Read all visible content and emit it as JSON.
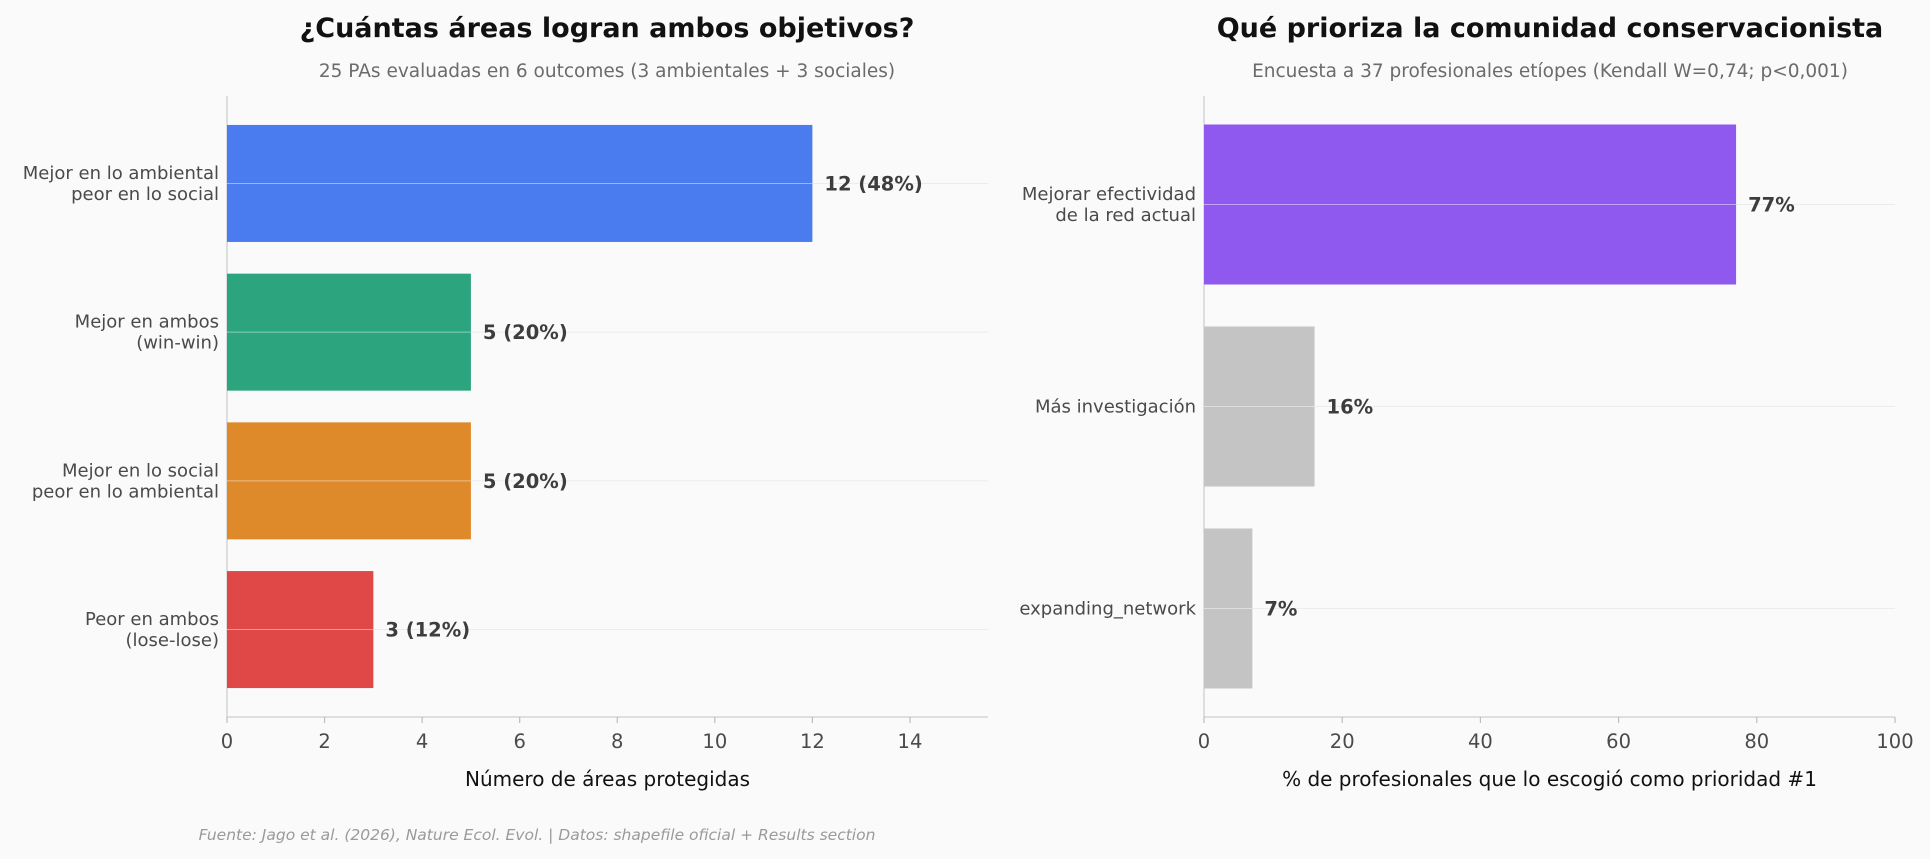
{
  "chart_data": [
    {
      "type": "bar",
      "orientation": "horizontal",
      "title": "¿Cuántas áreas logran ambos objetivos?",
      "subtitle": "25 PAs evaluadas en 6 outcomes (3 ambientales + 3 sociales)",
      "xlabel": "Número de áreas protegidas",
      "ylabel": "",
      "xlim": [
        0,
        15.6
      ],
      "xticks": [
        "0",
        "2",
        "4",
        "6",
        "8",
        "10",
        "12",
        "14"
      ],
      "grid": "horizontal, light",
      "categories": [
        [
          "Mejor en lo ambiental",
          "peor en lo social"
        ],
        [
          "Mejor en ambos",
          "(win-win)"
        ],
        [
          "Mejor en lo social",
          "peor en lo ambiental"
        ],
        [
          "Peor en ambos",
          "(lose-lose)"
        ]
      ],
      "values": [
        12,
        5,
        5,
        3
      ],
      "data_labels": [
        "12 (48%)",
        "5 (20%)",
        "5 (20%)",
        "3 (12%)"
      ],
      "colors": [
        "#4a7bef",
        "#2ca57f",
        "#de892a",
        "#e04848"
      ]
    },
    {
      "type": "bar",
      "orientation": "horizontal",
      "title": "Qué prioriza la comunidad conservacionista",
      "subtitle": "Encuesta a 37 profesionales etíopes (Kendall W=0,74; p<0,001)",
      "xlabel": "% de profesionales que lo escogió como prioridad #1",
      "ylabel": "",
      "xlim": [
        0,
        100
      ],
      "xticks": [
        "0",
        "20",
        "40",
        "60",
        "80",
        "100"
      ],
      "grid": "horizontal, light",
      "categories": [
        [
          "Mejorar efectividad",
          "de la red actual"
        ],
        [
          "Más investigación"
        ],
        [
          "expanding_network"
        ]
      ],
      "values": [
        77,
        16,
        7
      ],
      "data_labels": [
        "77%",
        "16%",
        "7%"
      ],
      "colors": [
        "#8f59ef",
        "#c4c4c4",
        "#c4c4c4"
      ]
    }
  ],
  "footer": {
    "source": "Fuente: Jago et al. (2026), Nature Ecol. Evol. | Datos: shapefile oficial + Results section"
  }
}
